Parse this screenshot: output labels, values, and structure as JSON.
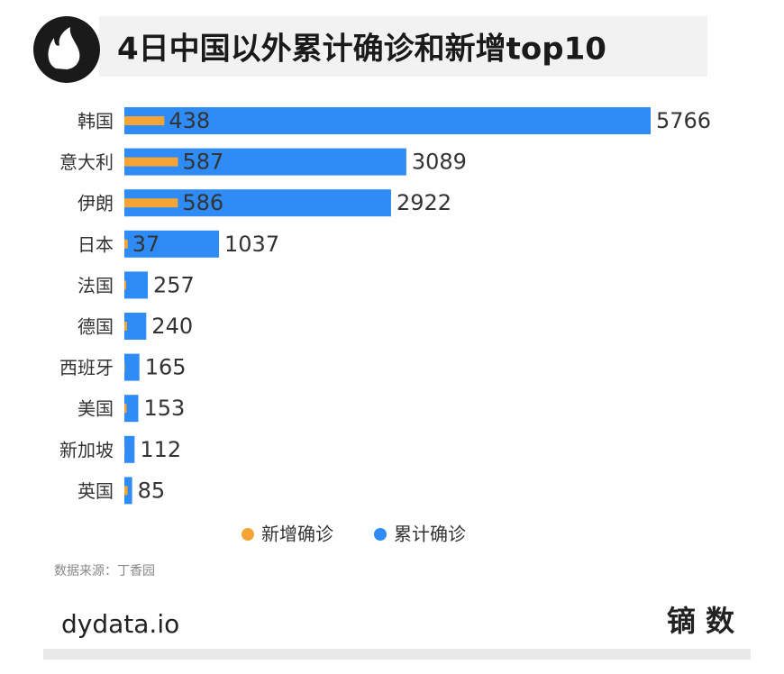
{
  "chart_data": {
    "type": "bar",
    "orientation": "horizontal",
    "title": "4日中国以外累计确诊和新增top10",
    "categories": [
      "韩国",
      "意大利",
      "伊朗",
      "日本",
      "法国",
      "德国",
      "西班牙",
      "美国",
      "新加坡",
      "英国"
    ],
    "series": [
      {
        "name": "新增确诊",
        "color": "#f5a535",
        "values": [
          438,
          587,
          586,
          37,
          20,
          30,
          5,
          25,
          2,
          36
        ],
        "value_labels": [
          "438",
          "587",
          "586",
          "37",
          null,
          null,
          null,
          null,
          null,
          null
        ]
      },
      {
        "name": "累计确诊",
        "color": "#2f8cf6",
        "values": [
          5766,
          3089,
          2922,
          1037,
          257,
          240,
          165,
          153,
          112,
          85
        ]
      }
    ],
    "legend": "bottom",
    "source": "数据来源：丁香园"
  },
  "footer": {
    "left": "dydata.io",
    "right": "镝 数"
  }
}
